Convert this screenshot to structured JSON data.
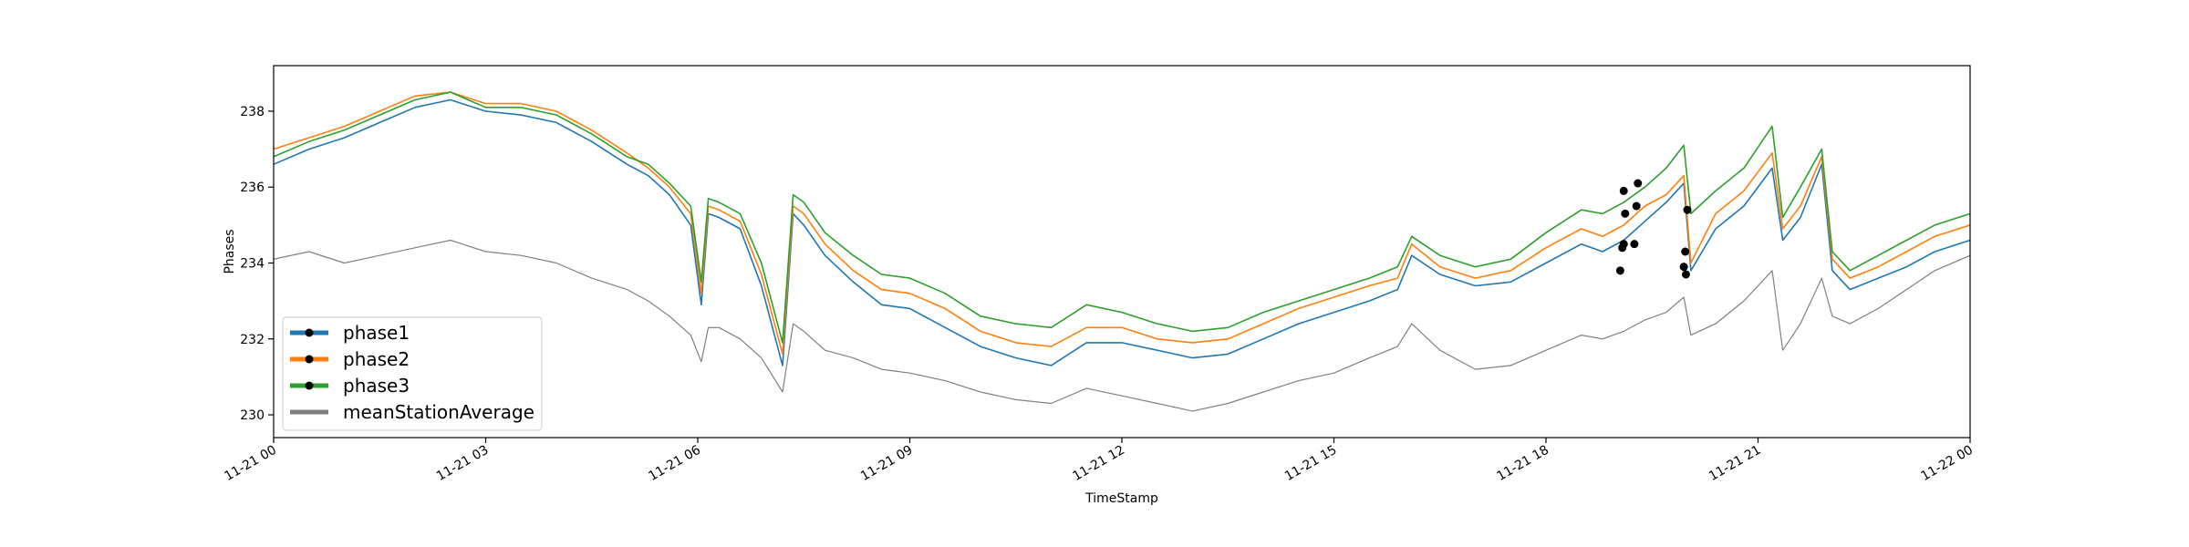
{
  "chart_data": {
    "type": "line",
    "xlabel": "TimeStamp",
    "ylabel": "Phases",
    "x_axis": {
      "ticks": [
        0,
        3,
        6,
        9,
        12,
        15,
        18,
        21,
        24
      ],
      "tick_labels": [
        "11-21 00",
        "11-21 03",
        "11-21 06",
        "11-21 09",
        "11-21 12",
        "11-21 15",
        "11-21 18",
        "11-21 21",
        "11-22 00"
      ],
      "range": [
        0,
        24
      ],
      "unit": "hours since 11-21 00"
    },
    "y_axis": {
      "ticks": [
        230,
        232,
        234,
        236,
        238
      ],
      "tick_labels": [
        "230",
        "232",
        "234",
        "236",
        "238"
      ],
      "range": [
        229.4,
        239.2
      ]
    },
    "grid": false,
    "legend": {
      "position": "lower-left",
      "entries": [
        {
          "label": "phase1",
          "color": "#1f77b4",
          "marker": true
        },
        {
          "label": "phase2",
          "color": "#ff7f0e",
          "marker": true
        },
        {
          "label": "phase3",
          "color": "#2ca02c",
          "marker": true
        },
        {
          "label": "meanStationAverage",
          "color": "#808080",
          "marker": false
        }
      ]
    },
    "series": [
      {
        "name": "phase1",
        "color": "#1f77b4",
        "x": [
          0,
          0.5,
          1,
          1.5,
          2,
          2.5,
          3,
          3.5,
          4,
          4.5,
          5,
          5.3,
          5.6,
          5.9,
          6.05,
          6.15,
          6.3,
          6.6,
          6.9,
          7.2,
          7.35,
          7.5,
          7.8,
          8.2,
          8.6,
          9,
          9.5,
          10,
          10.5,
          11,
          11.5,
          12,
          12.5,
          13,
          13.5,
          14,
          14.5,
          15,
          15.5,
          15.9,
          16.1,
          16.5,
          17,
          17.5,
          18,
          18.5,
          18.8,
          19.1,
          19.4,
          19.7,
          19.95,
          20.05,
          20.4,
          20.8,
          21.2,
          21.35,
          21.6,
          21.9,
          22.05,
          22.3,
          22.7,
          23.1,
          23.5,
          24
        ],
        "values": [
          236.6,
          237.0,
          237.3,
          237.7,
          238.1,
          238.3,
          238.0,
          237.9,
          237.7,
          237.2,
          236.6,
          236.3,
          235.8,
          235.0,
          232.9,
          235.3,
          235.2,
          234.9,
          233.4,
          231.3,
          235.3,
          235.0,
          234.2,
          233.5,
          232.9,
          232.8,
          232.3,
          231.8,
          231.5,
          231.3,
          231.9,
          231.9,
          231.7,
          231.5,
          231.6,
          232.0,
          232.4,
          232.7,
          233.0,
          233.3,
          234.2,
          233.7,
          233.4,
          233.5,
          234.0,
          234.5,
          234.3,
          234.6,
          235.1,
          235.6,
          236.1,
          233.8,
          234.9,
          235.5,
          236.5,
          234.6,
          235.2,
          236.6,
          233.8,
          233.3,
          233.6,
          233.9,
          234.3,
          234.6
        ]
      },
      {
        "name": "phase2",
        "color": "#ff7f0e",
        "x": [
          0,
          0.5,
          1,
          1.5,
          2,
          2.5,
          3,
          3.5,
          4,
          4.5,
          5,
          5.3,
          5.6,
          5.9,
          6.05,
          6.15,
          6.3,
          6.6,
          6.9,
          7.2,
          7.35,
          7.5,
          7.8,
          8.2,
          8.6,
          9,
          9.5,
          10,
          10.5,
          11,
          11.5,
          12,
          12.5,
          13,
          13.5,
          14,
          14.5,
          15,
          15.5,
          15.9,
          16.1,
          16.5,
          17,
          17.5,
          18,
          18.5,
          18.8,
          19.1,
          19.4,
          19.7,
          19.95,
          20.05,
          20.4,
          20.8,
          21.2,
          21.35,
          21.6,
          21.9,
          22.05,
          22.3,
          22.7,
          23.1,
          23.5,
          24
        ],
        "values": [
          237.0,
          237.3,
          237.6,
          238.0,
          238.4,
          238.5,
          238.2,
          238.2,
          238.0,
          237.5,
          236.9,
          236.5,
          236.0,
          235.3,
          233.2,
          235.5,
          235.4,
          235.1,
          233.7,
          231.6,
          235.5,
          235.3,
          234.5,
          233.8,
          233.3,
          233.2,
          232.8,
          232.2,
          231.9,
          231.8,
          232.3,
          232.3,
          232.0,
          231.9,
          232.0,
          232.4,
          232.8,
          233.1,
          233.4,
          233.6,
          234.5,
          233.9,
          233.6,
          233.8,
          234.4,
          234.9,
          234.7,
          235.0,
          235.5,
          235.8,
          236.3,
          234.0,
          235.3,
          235.9,
          236.9,
          234.9,
          235.5,
          236.8,
          234.1,
          233.6,
          233.9,
          234.3,
          234.7,
          235.0
        ]
      },
      {
        "name": "phase3",
        "color": "#2ca02c",
        "x": [
          0,
          0.5,
          1,
          1.5,
          2,
          2.5,
          3,
          3.5,
          4,
          4.5,
          5,
          5.3,
          5.6,
          5.9,
          6.05,
          6.15,
          6.3,
          6.6,
          6.9,
          7.2,
          7.35,
          7.5,
          7.8,
          8.2,
          8.6,
          9,
          9.5,
          10,
          10.5,
          11,
          11.5,
          12,
          12.5,
          13,
          13.5,
          14,
          14.5,
          15,
          15.5,
          15.9,
          16.1,
          16.5,
          17,
          17.5,
          18,
          18.5,
          18.8,
          19.1,
          19.4,
          19.7,
          19.95,
          20.05,
          20.4,
          20.8,
          21.2,
          21.35,
          21.6,
          21.9,
          22.05,
          22.3,
          22.7,
          23.1,
          23.5,
          24
        ],
        "values": [
          236.8,
          237.2,
          237.5,
          237.9,
          238.3,
          238.5,
          238.1,
          238.1,
          237.9,
          237.4,
          236.8,
          236.6,
          236.1,
          235.5,
          233.5,
          235.7,
          235.6,
          235.3,
          234.0,
          231.9,
          235.8,
          235.6,
          234.8,
          234.2,
          233.7,
          233.6,
          233.2,
          232.6,
          232.4,
          232.3,
          232.9,
          232.7,
          232.4,
          232.2,
          232.3,
          232.7,
          233.0,
          233.3,
          233.6,
          233.9,
          234.7,
          234.2,
          233.9,
          234.1,
          234.8,
          235.4,
          235.3,
          235.6,
          236.0,
          236.5,
          237.1,
          235.3,
          235.9,
          236.5,
          237.6,
          235.2,
          236.0,
          237.0,
          234.3,
          233.8,
          234.2,
          234.6,
          235.0,
          235.3
        ]
      },
      {
        "name": "meanStationAverage",
        "color": "#808080",
        "x": [
          0,
          0.5,
          1,
          1.5,
          2,
          2.5,
          3,
          3.5,
          4,
          4.5,
          5,
          5.3,
          5.6,
          5.9,
          6.05,
          6.15,
          6.3,
          6.6,
          6.9,
          7.2,
          7.35,
          7.5,
          7.8,
          8.2,
          8.6,
          9,
          9.5,
          10,
          10.5,
          11,
          11.5,
          12,
          12.5,
          13,
          13.5,
          14,
          14.5,
          15,
          15.5,
          15.9,
          16.1,
          16.5,
          17,
          17.5,
          18,
          18.5,
          18.8,
          19.1,
          19.4,
          19.7,
          19.95,
          20.05,
          20.4,
          20.8,
          21.2,
          21.35,
          21.6,
          21.9,
          22.05,
          22.3,
          22.7,
          23.1,
          23.5,
          24
        ],
        "values": [
          234.1,
          234.3,
          234.0,
          234.2,
          234.4,
          234.6,
          234.3,
          234.2,
          234.0,
          233.6,
          233.3,
          233.0,
          232.6,
          232.1,
          231.4,
          232.3,
          232.3,
          232.0,
          231.5,
          230.6,
          232.4,
          232.2,
          231.7,
          231.5,
          231.2,
          231.1,
          230.9,
          230.6,
          230.4,
          230.3,
          230.7,
          230.5,
          230.3,
          230.1,
          230.3,
          230.6,
          230.9,
          231.1,
          231.5,
          231.8,
          232.4,
          231.7,
          231.2,
          231.3,
          231.7,
          232.1,
          232.0,
          232.2,
          232.5,
          232.7,
          233.1,
          232.1,
          232.4,
          233.0,
          233.8,
          231.7,
          232.4,
          233.6,
          232.6,
          232.4,
          232.8,
          233.3,
          233.8,
          234.2
        ]
      }
    ],
    "markers": {
      "color": "#000000",
      "points": [
        {
          "series": "phase1",
          "x": 19.05,
          "y": 233.8
        },
        {
          "series": "phase1",
          "x": 19.1,
          "y": 234.5
        },
        {
          "series": "phase1",
          "x": 19.25,
          "y": 234.5
        },
        {
          "series": "phase1",
          "x": 19.95,
          "y": 233.9
        },
        {
          "series": "phase1",
          "x": 19.97,
          "y": 234.3
        },
        {
          "series": "phase2",
          "x": 19.08,
          "y": 234.4
        },
        {
          "series": "phase2",
          "x": 19.28,
          "y": 235.5
        },
        {
          "series": "phase2",
          "x": 19.98,
          "y": 233.7
        },
        {
          "series": "phase3",
          "x": 19.1,
          "y": 235.9
        },
        {
          "series": "phase3",
          "x": 19.12,
          "y": 235.3
        },
        {
          "series": "phase3",
          "x": 19.3,
          "y": 236.1
        },
        {
          "series": "phase3",
          "x": 20.0,
          "y": 235.4
        }
      ]
    }
  }
}
